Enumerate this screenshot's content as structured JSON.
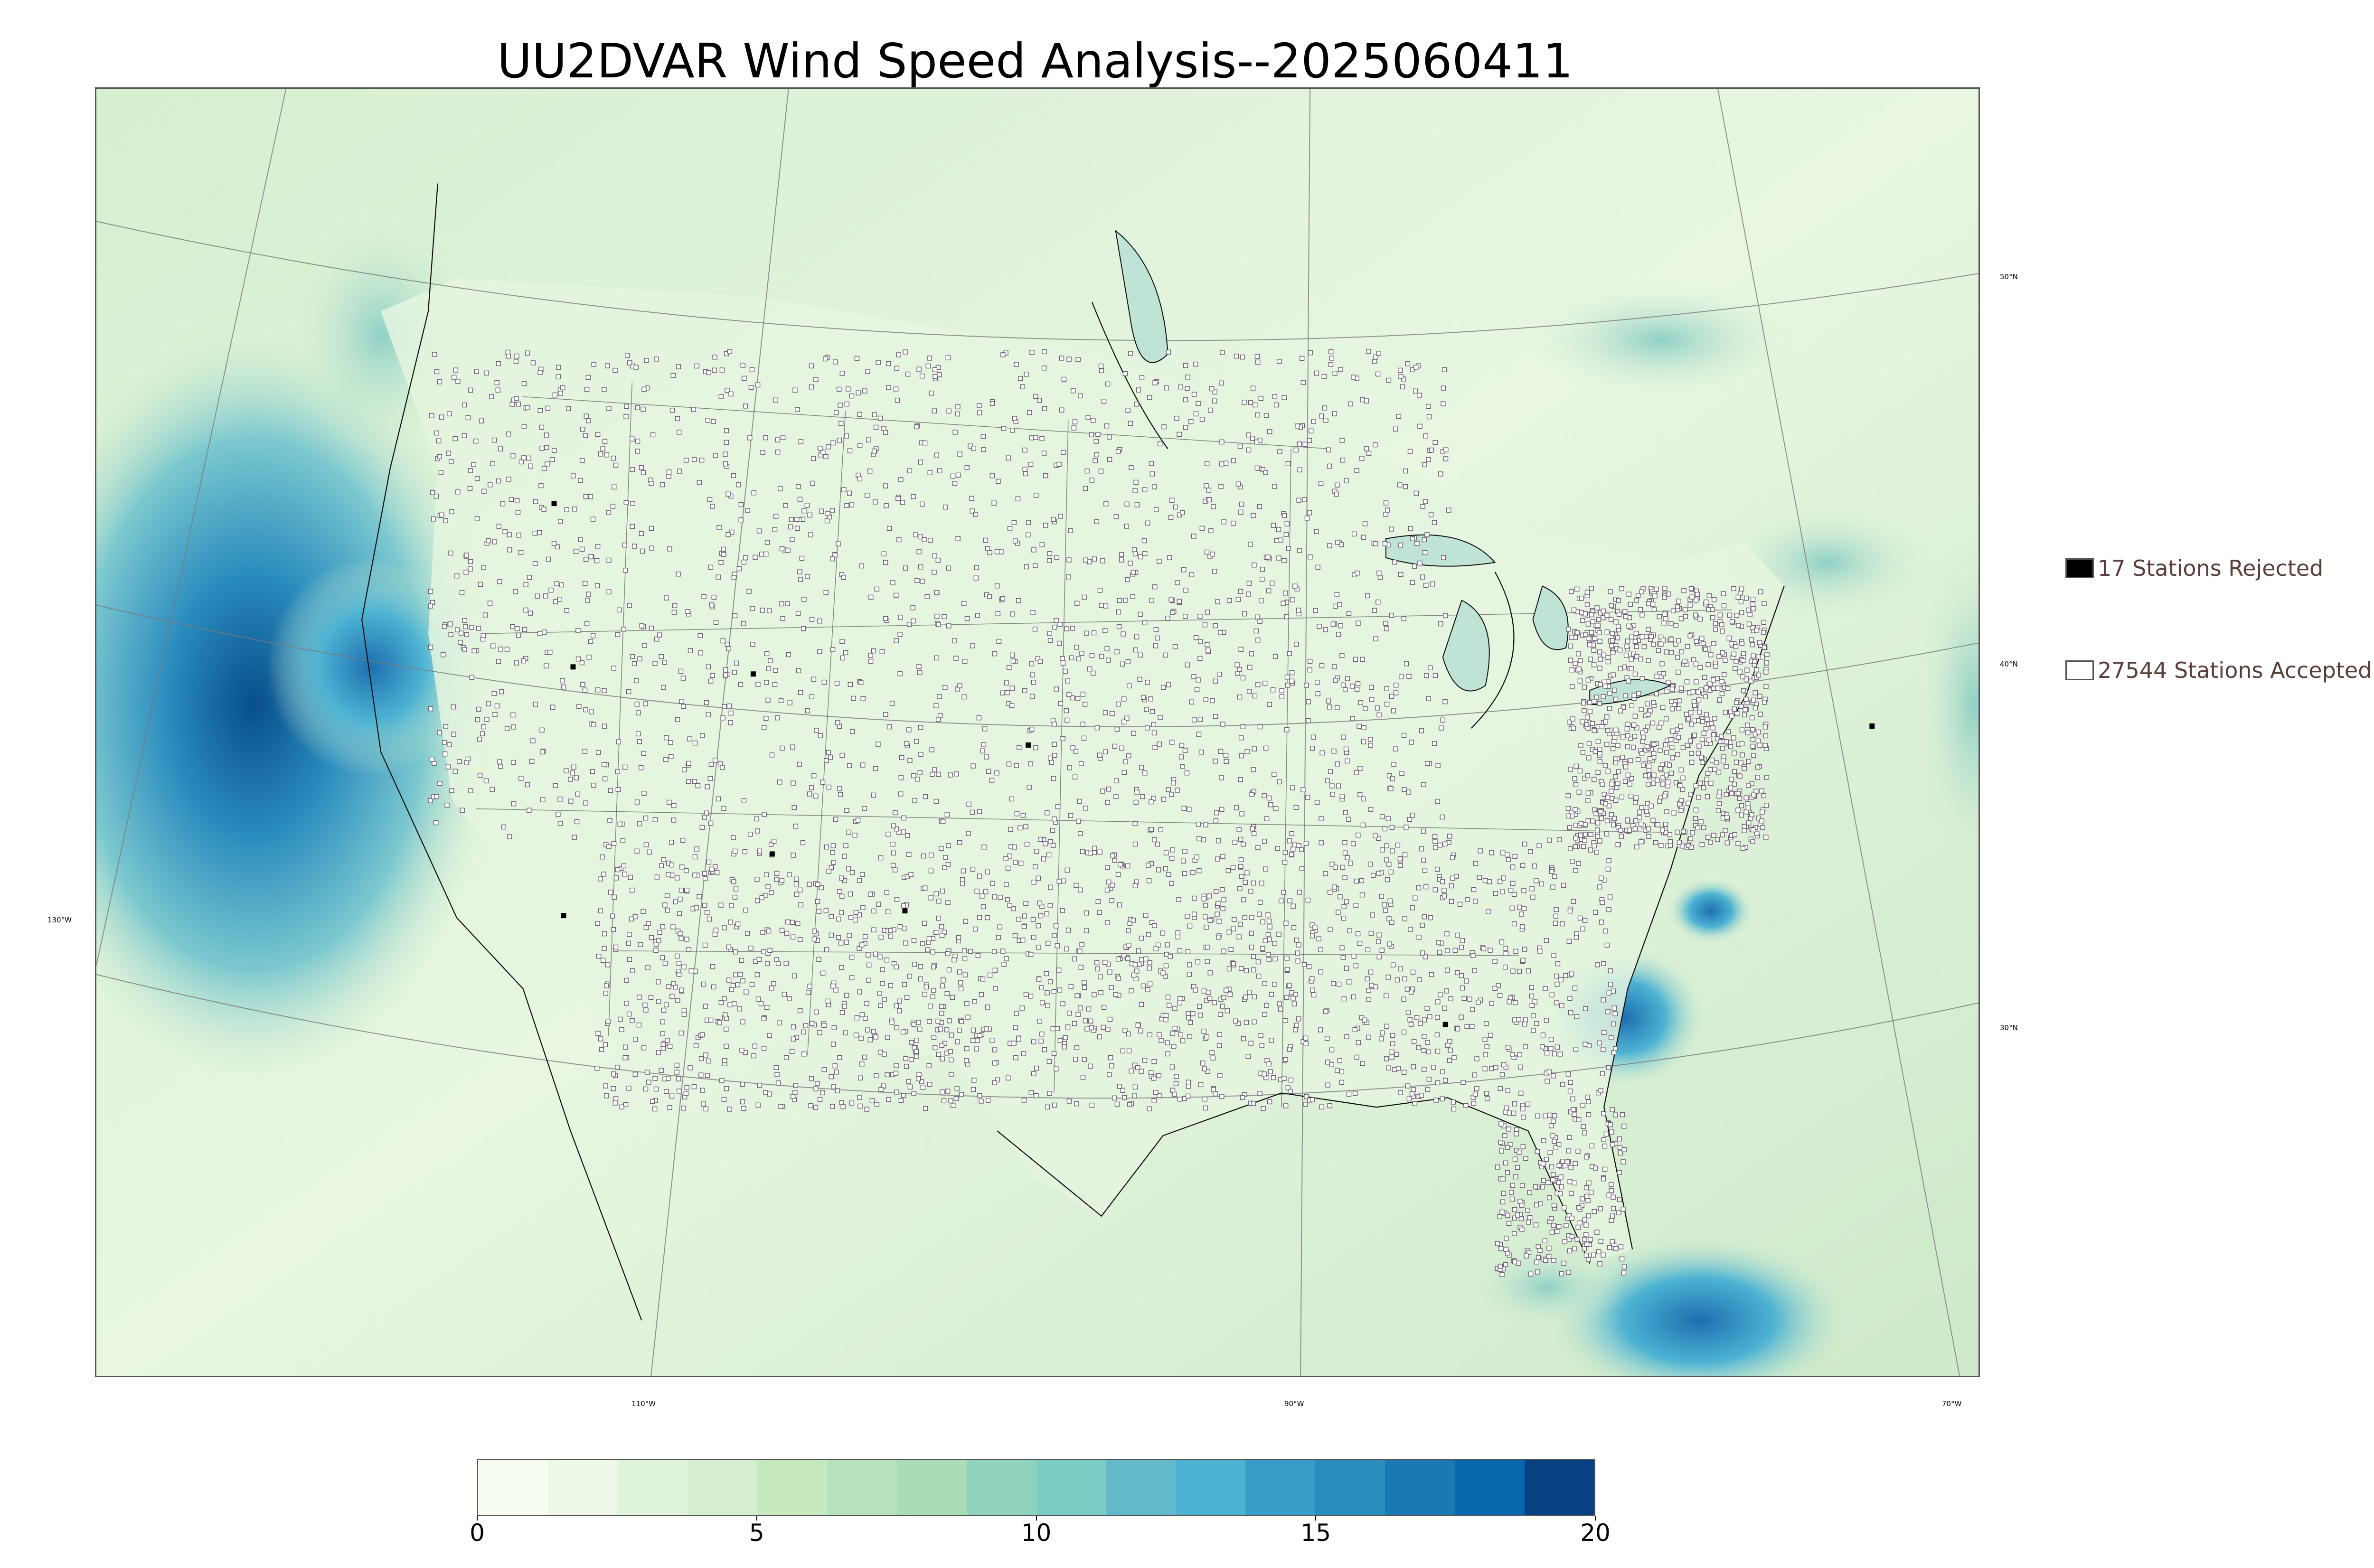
{
  "title": "UU2DVAR Wind Speed Analysis--2025060411",
  "axis_labels": {
    "lat": [
      "50°N",
      "40°N",
      "30°N"
    ],
    "lon": [
      "110°W",
      "90°W",
      "70°W"
    ],
    "left": "130°W"
  },
  "legend": {
    "rejected": {
      "label": "17 Stations Rejected",
      "color": "#000000"
    },
    "accepted": {
      "label": "27544 Stations Accepted",
      "color": "#ffffff"
    }
  },
  "colorbar": {
    "ticks": [
      "0",
      "5",
      "10",
      "15",
      "20"
    ],
    "range": [
      0,
      20
    ],
    "colors": [
      "#f7fcf0",
      "#eef8e8",
      "#e0f3db",
      "#d4eecf",
      "#c7e9c0",
      "#b6e3bc",
      "#a8ddb5",
      "#90d3bd",
      "#7bccc4",
      "#62bacb",
      "#4eb3d3",
      "#3a9cc8",
      "#2b8cbe",
      "#1a78b4",
      "#0868ac",
      "#084081"
    ]
  },
  "colors": {
    "land_base": "#e2f3dc",
    "ocean_base": "#cfeccd",
    "strong_wind": "#1f6fb0"
  }
}
